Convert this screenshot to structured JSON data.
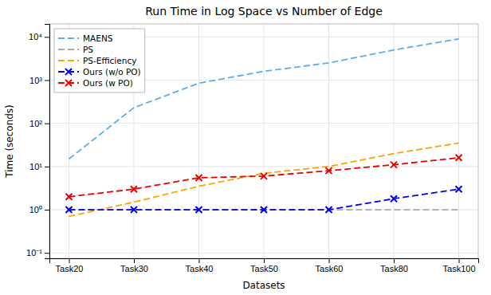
{
  "chart_data": {
    "type": "line",
    "title": "Run Time in Log Space vs Number of Edge",
    "xlabel": "Datasets",
    "ylabel": "Time (seconds)",
    "categories": [
      "Task20",
      "Task30",
      "Task40",
      "Task50",
      "Task60",
      "Task80",
      "Task100"
    ],
    "series": [
      {
        "name": "MAENS",
        "color": "#5AAFE8",
        "values": [
          15,
          230,
          850,
          1600,
          2500,
          5000,
          9000
        ]
      },
      {
        "name": "PS",
        "color": "#AAAAAA",
        "values": [
          1.0,
          1.0,
          1.0,
          1.0,
          1.0,
          1.0,
          1.0
        ]
      },
      {
        "name": "PS-Efficiency",
        "color": "#FFA500",
        "values": [
          0.7,
          1.5,
          3.5,
          7.0,
          10.0,
          20.0,
          35.0
        ]
      },
      {
        "name": "Ours (w/o PO)",
        "color": "#0000EE",
        "marker": "x",
        "values": [
          1.0,
          1.0,
          1.0,
          1.0,
          1.0,
          1.8,
          3.0
        ]
      },
      {
        "name": "Ours (w PO)",
        "color": "#EE0000",
        "marker": "x",
        "values": [
          2.0,
          3.0,
          5.5,
          6.0,
          8.0,
          11.0,
          16.0
        ]
      }
    ],
    "log": "y",
    "ylim": [
      0.075,
      20000
    ],
    "yticks": [
      {
        "value": 0.1,
        "label": "10⁻¹"
      },
      {
        "value": 1,
        "label": "10⁰"
      },
      {
        "value": 10,
        "label": "10¹"
      },
      {
        "value": 100,
        "label": "10²"
      },
      {
        "value": 1000,
        "label": "10³"
      },
      {
        "value": 10000,
        "label": "10⁴"
      }
    ],
    "grid": true,
    "legend": "upper left",
    "line_style": "dashed"
  }
}
